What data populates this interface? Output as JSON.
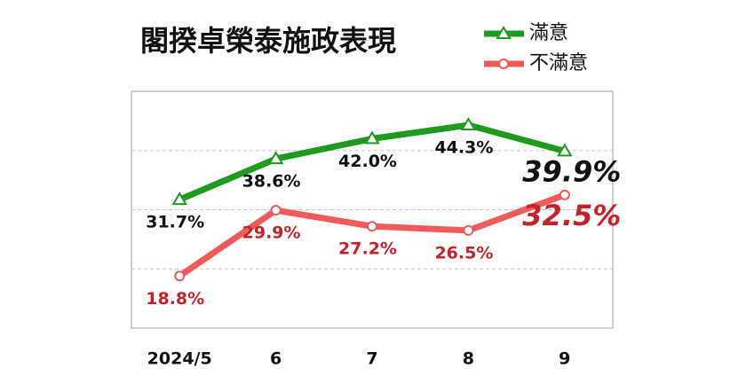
{
  "chart_data": {
    "type": "line",
    "title": "閣揆卓榮泰施政表現",
    "categories": [
      "2024/5",
      "6",
      "7",
      "8",
      "9"
    ],
    "series": [
      {
        "name": "滿意",
        "color": "#1e9a1e",
        "label_color": "#111111",
        "marker": "triangle",
        "values": [
          31.7,
          38.6,
          42.0,
          44.3,
          39.9
        ],
        "value_labels": [
          "31.7%",
          "38.6%",
          "42.0%",
          "44.3%",
          "39.9%"
        ]
      },
      {
        "name": "不滿意",
        "color": "#f05a5a",
        "label_color": "#c3242a",
        "marker": "circle",
        "values": [
          18.8,
          29.9,
          27.2,
          26.5,
          32.5
        ],
        "value_labels": [
          "18.8%",
          "29.9%",
          "27.2%",
          "26.5%",
          "32.5%"
        ]
      }
    ],
    "ylim": [
      10,
      50
    ],
    "yticks": [
      20,
      30,
      40
    ],
    "grid": true,
    "highlight_last": true,
    "legend": "top-right"
  }
}
